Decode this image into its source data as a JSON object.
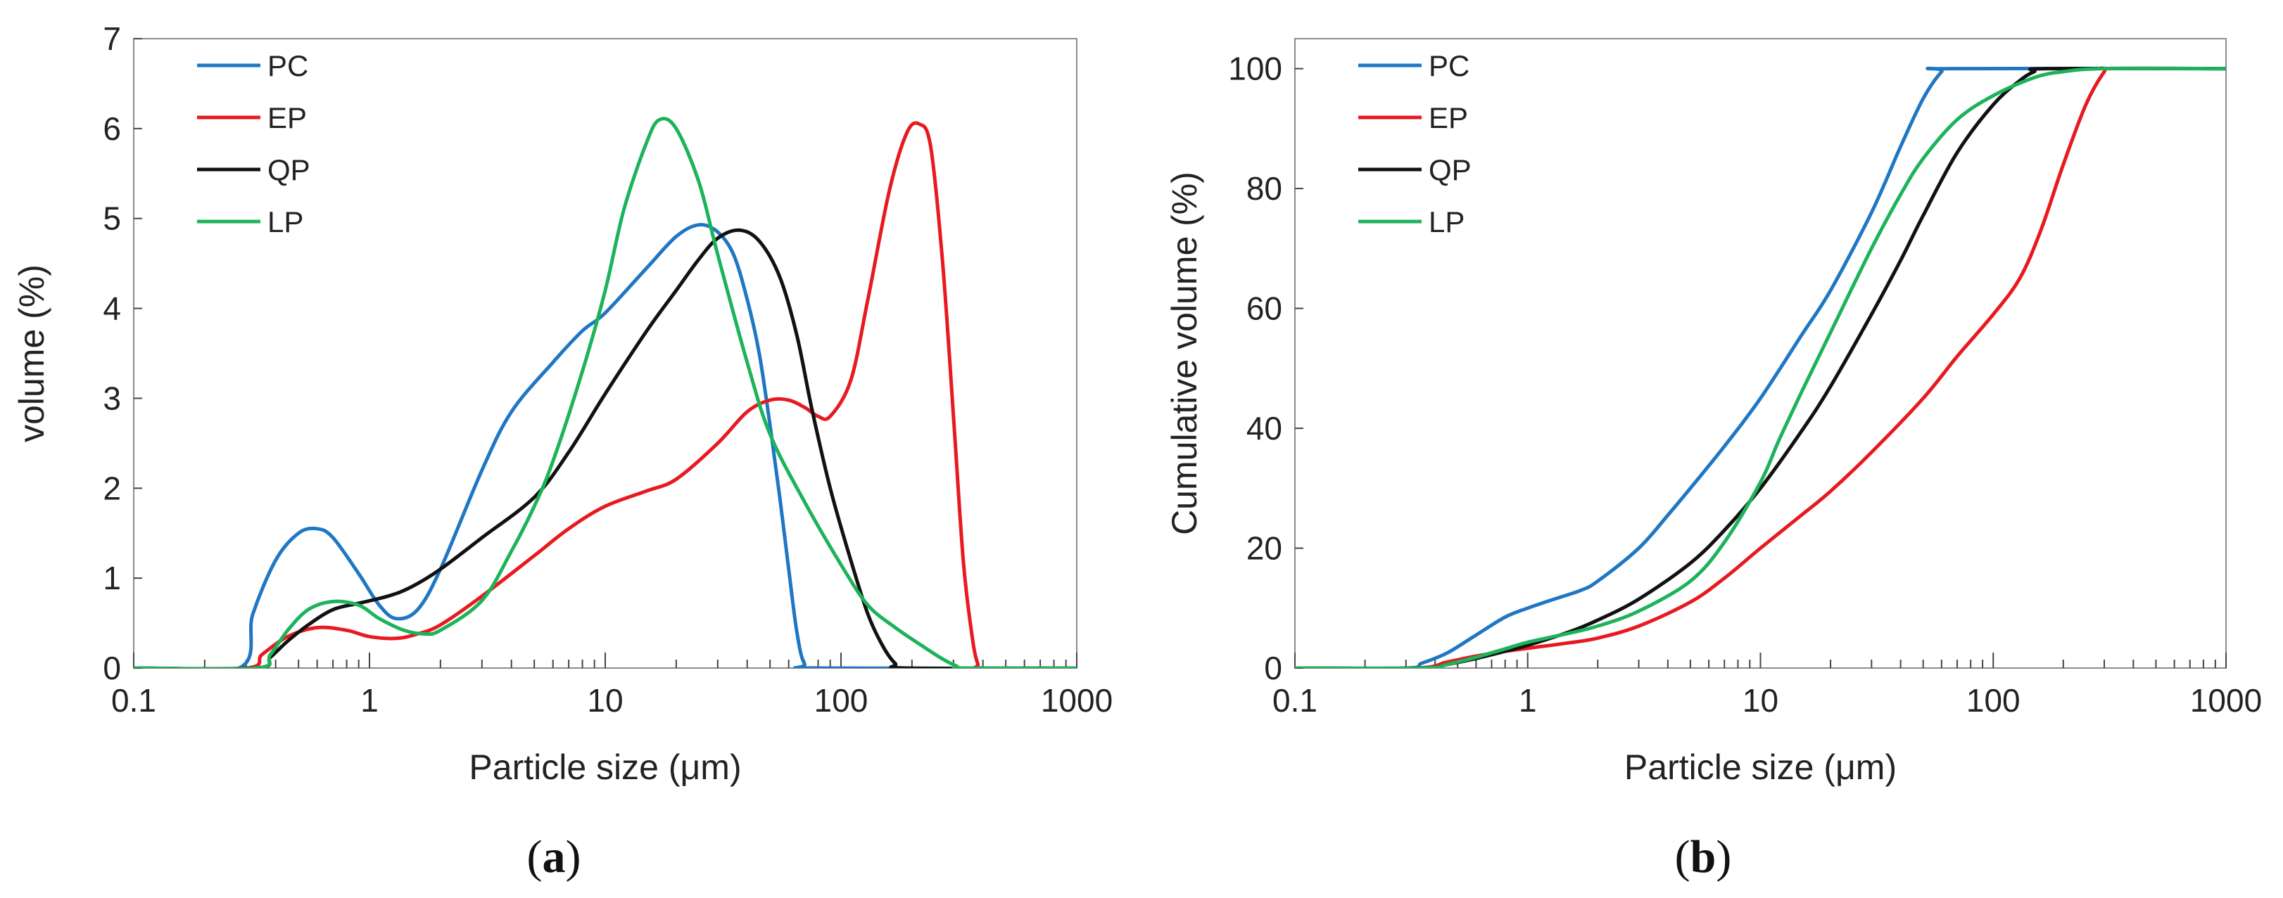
{
  "chart_data": [
    {
      "id": "a",
      "type": "line",
      "panel_label": "a",
      "title": "",
      "xlabel": "Particle size (μm)",
      "ylabel": "volume (%)",
      "xscale": "log",
      "xlim": [
        0.1,
        1000
      ],
      "ylim": [
        0,
        7
      ],
      "xticks": [
        0.1,
        1,
        10,
        100,
        1000
      ],
      "xtick_labels": [
        "0.1",
        "1",
        "10",
        "100",
        "1000"
      ],
      "yticks": [
        0,
        1,
        2,
        3,
        4,
        5,
        6,
        7
      ],
      "ytick_labels": [
        "0",
        "1",
        "2",
        "3",
        "4",
        "5",
        "6",
        "7"
      ],
      "grid": false,
      "legend": "top-left",
      "series": [
        {
          "name": "PC",
          "color": "#1f77c4",
          "points": [
            [
              0.1,
              0
            ],
            [
              0.28,
              0
            ],
            [
              0.32,
              0.6
            ],
            [
              0.4,
              1.2
            ],
            [
              0.5,
              1.5
            ],
            [
              0.6,
              1.55
            ],
            [
              0.7,
              1.45
            ],
            [
              0.9,
              1.05
            ],
            [
              1.1,
              0.7
            ],
            [
              1.3,
              0.55
            ],
            [
              1.6,
              0.65
            ],
            [
              2,
              1.1
            ],
            [
              3,
              2.2
            ],
            [
              4,
              2.85
            ],
            [
              6,
              3.4
            ],
            [
              8,
              3.75
            ],
            [
              10,
              3.95
            ],
            [
              15,
              4.45
            ],
            [
              20,
              4.8
            ],
            [
              25,
              4.93
            ],
            [
              30,
              4.85
            ],
            [
              35,
              4.6
            ],
            [
              40,
              4.1
            ],
            [
              45,
              3.5
            ],
            [
              50,
              2.7
            ],
            [
              55,
              1.9
            ],
            [
              60,
              1.1
            ],
            [
              65,
              0.4
            ],
            [
              70,
              0.05
            ],
            [
              80,
              0
            ],
            [
              1000,
              0
            ]
          ]
        },
        {
          "name": "EP",
          "color": "#e8191f",
          "points": [
            [
              0.1,
              0
            ],
            [
              0.3,
              0
            ],
            [
              0.35,
              0.15
            ],
            [
              0.45,
              0.35
            ],
            [
              0.6,
              0.45
            ],
            [
              0.8,
              0.42
            ],
            [
              1,
              0.35
            ],
            [
              1.3,
              0.33
            ],
            [
              1.6,
              0.38
            ],
            [
              2,
              0.48
            ],
            [
              3,
              0.8
            ],
            [
              5,
              1.25
            ],
            [
              7,
              1.55
            ],
            [
              10,
              1.8
            ],
            [
              15,
              1.97
            ],
            [
              20,
              2.1
            ],
            [
              30,
              2.5
            ],
            [
              40,
              2.85
            ],
            [
              50,
              2.98
            ],
            [
              60,
              2.98
            ],
            [
              70,
              2.9
            ],
            [
              80,
              2.8
            ],
            [
              90,
              2.8
            ],
            [
              110,
              3.2
            ],
            [
              130,
              4.1
            ],
            [
              160,
              5.3
            ],
            [
              190,
              5.95
            ],
            [
              215,
              6.05
            ],
            [
              240,
              5.8
            ],
            [
              270,
              4.5
            ],
            [
              300,
              2.8
            ],
            [
              330,
              1.2
            ],
            [
              360,
              0.35
            ],
            [
              380,
              0.05
            ],
            [
              400,
              0
            ],
            [
              1000,
              0
            ]
          ]
        },
        {
          "name": "QP",
          "color": "#111111",
          "points": [
            [
              0.1,
              0
            ],
            [
              0.33,
              0
            ],
            [
              0.38,
              0.12
            ],
            [
              0.45,
              0.3
            ],
            [
              0.55,
              0.48
            ],
            [
              0.7,
              0.65
            ],
            [
              0.9,
              0.72
            ],
            [
              1.2,
              0.8
            ],
            [
              1.5,
              0.9
            ],
            [
              2,
              1.1
            ],
            [
              3,
              1.45
            ],
            [
              5,
              1.9
            ],
            [
              7,
              2.4
            ],
            [
              10,
              3.05
            ],
            [
              15,
              3.75
            ],
            [
              20,
              4.2
            ],
            [
              25,
              4.55
            ],
            [
              30,
              4.78
            ],
            [
              37,
              4.87
            ],
            [
              45,
              4.75
            ],
            [
              55,
              4.35
            ],
            [
              65,
              3.7
            ],
            [
              75,
              2.9
            ],
            [
              90,
              2.0
            ],
            [
              110,
              1.2
            ],
            [
              130,
              0.6
            ],
            [
              150,
              0.25
            ],
            [
              170,
              0.05
            ],
            [
              190,
              0
            ],
            [
              1000,
              0
            ]
          ]
        },
        {
          "name": "LP",
          "color": "#1cb35a",
          "points": [
            [
              0.1,
              0
            ],
            [
              0.33,
              0
            ],
            [
              0.38,
              0.15
            ],
            [
              0.45,
              0.42
            ],
            [
              0.55,
              0.65
            ],
            [
              0.7,
              0.74
            ],
            [
              0.9,
              0.7
            ],
            [
              1.1,
              0.55
            ],
            [
              1.4,
              0.42
            ],
            [
              1.7,
              0.38
            ],
            [
              2,
              0.42
            ],
            [
              3,
              0.75
            ],
            [
              4,
              1.3
            ],
            [
              5,
              1.8
            ],
            [
              6,
              2.3
            ],
            [
              8,
              3.3
            ],
            [
              10,
              4.2
            ],
            [
              12,
              5.1
            ],
            [
              15,
              5.85
            ],
            [
              17,
              6.1
            ],
            [
              20,
              6.0
            ],
            [
              25,
              5.4
            ],
            [
              30,
              4.6
            ],
            [
              40,
              3.4
            ],
            [
              50,
              2.6
            ],
            [
              70,
              1.85
            ],
            [
              100,
              1.15
            ],
            [
              130,
              0.7
            ],
            [
              170,
              0.45
            ],
            [
              220,
              0.25
            ],
            [
              270,
              0.1
            ],
            [
              310,
              0.02
            ],
            [
              330,
              0
            ],
            [
              1000,
              0
            ]
          ]
        }
      ]
    },
    {
      "id": "b",
      "type": "line",
      "panel_label": "b",
      "title": "",
      "xlabel": "Particle size (μm)",
      "ylabel": "Cumulative volume (%)",
      "xscale": "log",
      "xlim": [
        0.1,
        1000
      ],
      "ylim": [
        0,
        105
      ],
      "xticks": [
        0.1,
        1,
        10,
        100,
        1000
      ],
      "xtick_labels": [
        "0.1",
        "1",
        "10",
        "100",
        "1000"
      ],
      "yticks": [
        0,
        20,
        40,
        60,
        80,
        100
      ],
      "ytick_labels": [
        "0",
        "20",
        "40",
        "60",
        "80",
        "100"
      ],
      "grid": false,
      "legend": "top-left",
      "series": [
        {
          "name": "PC",
          "color": "#1f77c4",
          "points": [
            [
              0.1,
              0
            ],
            [
              0.3,
              0
            ],
            [
              0.35,
              0.8
            ],
            [
              0.45,
              2.5
            ],
            [
              0.6,
              5.5
            ],
            [
              0.8,
              8.5
            ],
            [
              1,
              10
            ],
            [
              1.3,
              11.5
            ],
            [
              1.7,
              13
            ],
            [
              2,
              14.5
            ],
            [
              3,
              20
            ],
            [
              4,
              25.5
            ],
            [
              5,
              30
            ],
            [
              7,
              37
            ],
            [
              10,
              45
            ],
            [
              15,
              55.5
            ],
            [
              20,
              63
            ],
            [
              30,
              76
            ],
            [
              40,
              87
            ],
            [
              50,
              95
            ],
            [
              60,
              99.5
            ],
            [
              65,
              100
            ],
            [
              1000,
              100
            ]
          ]
        },
        {
          "name": "EP",
          "color": "#e8191f",
          "points": [
            [
              0.1,
              0
            ],
            [
              0.33,
              0
            ],
            [
              0.45,
              1
            ],
            [
              0.6,
              2
            ],
            [
              0.8,
              2.8
            ],
            [
              1,
              3.3
            ],
            [
              1.5,
              4.2
            ],
            [
              2,
              5
            ],
            [
              3,
              7
            ],
            [
              5,
              11
            ],
            [
              7,
              15
            ],
            [
              10,
              20
            ],
            [
              15,
              25.5
            ],
            [
              20,
              29.5
            ],
            [
              30,
              36
            ],
            [
              50,
              45
            ],
            [
              70,
              52
            ],
            [
              100,
              59
            ],
            [
              130,
              65
            ],
            [
              160,
              73
            ],
            [
              200,
              84
            ],
            [
              250,
              94
            ],
            [
              300,
              99.5
            ],
            [
              320,
              100
            ],
            [
              1000,
              100
            ]
          ]
        },
        {
          "name": "QP",
          "color": "#111111",
          "points": [
            [
              0.1,
              0
            ],
            [
              0.35,
              0
            ],
            [
              0.45,
              0.6
            ],
            [
              0.6,
              1.6
            ],
            [
              0.8,
              2.8
            ],
            [
              1,
              3.8
            ],
            [
              1.5,
              6
            ],
            [
              2,
              8
            ],
            [
              3,
              11.5
            ],
            [
              5,
              17.5
            ],
            [
              7,
              23
            ],
            [
              10,
              30
            ],
            [
              15,
              39.5
            ],
            [
              20,
              47
            ],
            [
              30,
              59
            ],
            [
              40,
              68
            ],
            [
              50,
              75.5
            ],
            [
              70,
              86
            ],
            [
              100,
              94
            ],
            [
              130,
              98
            ],
            [
              150,
              99.5
            ],
            [
              170,
              100
            ],
            [
              1000,
              100
            ]
          ]
        },
        {
          "name": "LP",
          "color": "#1cb35a",
          "points": [
            [
              0.1,
              0
            ],
            [
              0.35,
              0
            ],
            [
              0.45,
              0.6
            ],
            [
              0.6,
              1.8
            ],
            [
              0.8,
              3.2
            ],
            [
              1,
              4.3
            ],
            [
              1.5,
              5.8
            ],
            [
              2,
              7
            ],
            [
              3,
              9.5
            ],
            [
              5,
              14.5
            ],
            [
              7,
              21
            ],
            [
              10,
              31
            ],
            [
              12,
              38
            ],
            [
              15,
              46
            ],
            [
              20,
              56
            ],
            [
              30,
              70
            ],
            [
              40,
              79
            ],
            [
              50,
              85
            ],
            [
              70,
              91.5
            ],
            [
              100,
              95.5
            ],
            [
              150,
              98.5
            ],
            [
              200,
              99.5
            ],
            [
              300,
              100
            ],
            [
              1000,
              100
            ]
          ]
        }
      ]
    }
  ]
}
